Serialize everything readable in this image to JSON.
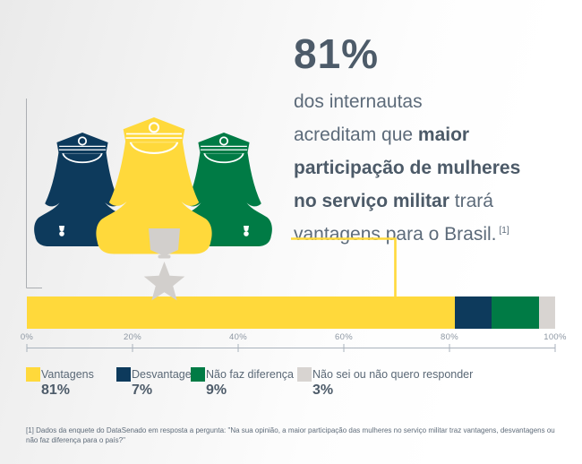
{
  "headline": {
    "stat": "81%",
    "line1": "dos internautas",
    "line2_normal": "acreditam que ",
    "line2_bold": "maior",
    "line3_bold": "participação de mulheres",
    "line4_bold": "no serviço militar",
    "line4_normal": " trará",
    "line5_highlight": "vantagens",
    "line5_normal": " para o Brasil.",
    "footnote_ref": "[1]"
  },
  "chart_data": {
    "type": "bar",
    "stacked": true,
    "orientation": "horizontal",
    "categories": [
      "Vantagens",
      "Desvantagens",
      "Não faz diferença",
      "Não sei ou não quero responder"
    ],
    "values": [
      81,
      7,
      9,
      3
    ],
    "unit": "%",
    "colors": [
      "#ffd93b",
      "#0d3a5c",
      "#007b45",
      "#d8d4d1"
    ],
    "x_ticks": [
      "0%",
      "20%",
      "40%",
      "60%",
      "80%",
      "100%"
    ],
    "xlim": [
      0,
      100
    ],
    "grid": false,
    "legend_position": "bottom"
  },
  "legend": {
    "items": [
      {
        "label": "Vantagens",
        "value": "81%",
        "color": "#ffd93b"
      },
      {
        "label": "Desvantagens",
        "value": "7%",
        "color": "#0d3a5c"
      },
      {
        "label": "Não faz diferença",
        "value": "9%",
        "color": "#007b45"
      },
      {
        "label": "Não sei ou não quero responder",
        "value": "3%",
        "color": "#d8d4d1"
      }
    ]
  },
  "figures": {
    "description": "three female military officer silhouettes, center one with star medal",
    "colors": [
      "#0d3a5c",
      "#ffd93b",
      "#007b45"
    ],
    "medal_color": "#d2cfcc",
    "accent_yellow": "#ffd93b"
  },
  "footnote": "[1] Dados da enquete do DataSenado em resposta a pergunta: \"Na sua opinião, a maior participação das mulheres no serviço militar traz vantagens, desvantagens ou não faz diferença para o país?\""
}
